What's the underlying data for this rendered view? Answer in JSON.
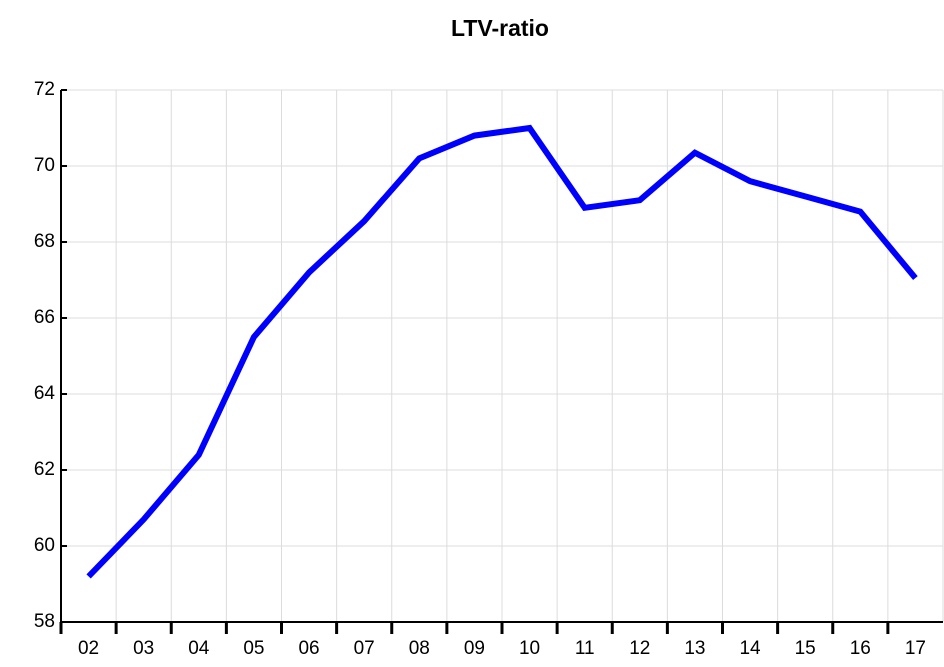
{
  "chart_data": {
    "type": "line",
    "title": "LTV-ratio",
    "categories": [
      "02",
      "03",
      "04",
      "05",
      "06",
      "07",
      "08",
      "09",
      "10",
      "11",
      "12",
      "13",
      "14",
      "15",
      "16",
      "17"
    ],
    "series": [
      {
        "name": "LTV-ratio",
        "color": "#0000ff",
        "values": [
          59.2,
          60.7,
          62.4,
          65.5,
          67.2,
          68.55,
          70.2,
          70.8,
          71.0,
          68.9,
          69.1,
          70.35,
          69.6,
          69.2,
          68.8,
          67.05
        ]
      }
    ],
    "ylim": [
      58,
      72
    ],
    "yticks": [
      58,
      60,
      62,
      64,
      66,
      68,
      70,
      72
    ],
    "grid": true
  }
}
